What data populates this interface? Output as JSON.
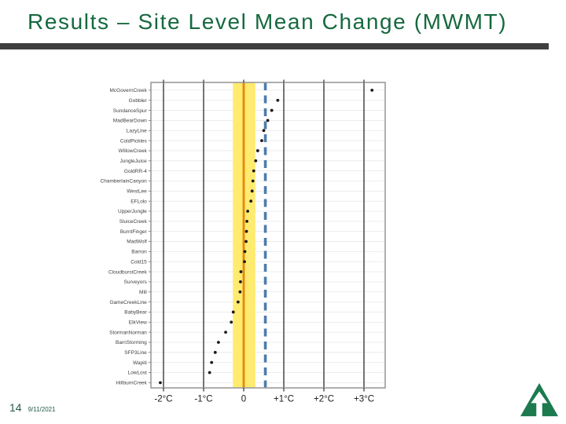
{
  "slide": {
    "title": "Results – Site Level Mean Change (MWMT)",
    "page_number": "14",
    "date": "9/11/2021"
  },
  "colors": {
    "title_green": "#16693f",
    "divider_gray": "#3f3f3f",
    "footer_green": "#215b4c",
    "logo_green": "#1d7a4f",
    "band_yellow": "#ffeb70",
    "zero_line_orange": "#e8860d",
    "dashed_line_blue": "#4e7bad",
    "point_black": "#1a1a1a",
    "row_grid_gray": "#e8e8e8",
    "plot_border_gray": "#9b9b9b"
  },
  "chart_data": {
    "type": "scatter",
    "subtype": "horizontal-dot-plot",
    "title": "",
    "xlabel": "",
    "ylabel": "",
    "grid": true,
    "legend": false,
    "xlim": [
      -2.31,
      3.53
    ],
    "tick_values": [
      -2,
      -1,
      0,
      1,
      2,
      3
    ],
    "tick_labels": [
      "-2°C",
      "-1°C",
      "0",
      "+1°C",
      "+2°C",
      "+3°C"
    ],
    "categories": [
      "McGovernCreek",
      "Gobbler",
      "SundanceSpur",
      "MadBearDown",
      "LazyLine",
      "ColdPickles",
      "WillowCreek",
      "JungleJuice",
      "GoldRR-4",
      "ChamberlainCanyon",
      "WestLee",
      "EFLolo",
      "UpperJungle",
      "SluiceCreek",
      "BurntFinger",
      "MadWolf",
      "Barron",
      "Cold15",
      "CloudburstCreek",
      "Surveyors",
      "Mill",
      "GameCreekLine",
      "BabyBear",
      "ElkView",
      "StormanNorman",
      "BarnStorming",
      "SFP3Line",
      "Wapiti",
      "LowLost",
      "HillburnCreek"
    ],
    "values": [
      3.2,
      0.85,
      0.7,
      0.6,
      0.5,
      0.45,
      0.35,
      0.3,
      0.25,
      0.23,
      0.21,
      0.18,
      0.1,
      0.08,
      0.07,
      0.06,
      0.03,
      0.02,
      -0.07,
      -0.08,
      -0.09,
      -0.14,
      -0.26,
      -0.31,
      -0.45,
      -0.63,
      -0.71,
      -0.8,
      -0.85,
      -2.08
    ],
    "reference_band": {
      "from": -0.27,
      "to": 0.29
    },
    "zero_line": {
      "x": 0
    },
    "dashed_line": {
      "x": 0.54,
      "style": "dashed"
    }
  }
}
